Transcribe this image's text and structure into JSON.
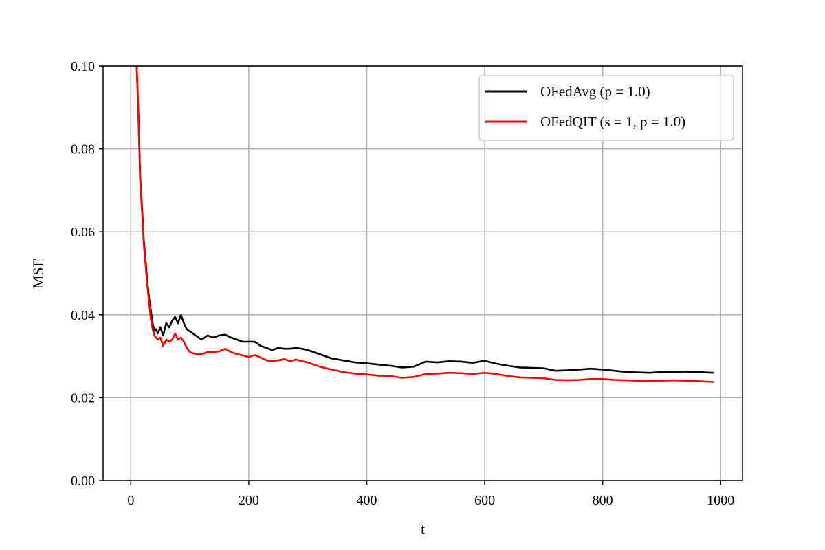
{
  "chart_data": {
    "type": "line",
    "title": "",
    "xlabel": "t",
    "ylabel": "MSE",
    "xlim": [
      -47,
      1037
    ],
    "ylim": [
      0.0,
      0.1
    ],
    "xticks": [
      0,
      200,
      400,
      600,
      800,
      1000
    ],
    "xtick_labels": [
      "0",
      "200",
      "400",
      "600",
      "800",
      "1000"
    ],
    "yticks": [
      0.0,
      0.02,
      0.04,
      0.06,
      0.08,
      0.1
    ],
    "ytick_labels": [
      "0.00",
      "0.02",
      "0.04",
      "0.06",
      "0.08",
      "0.10"
    ],
    "grid": true,
    "legend_position": "top-right",
    "series": [
      {
        "name": "OFedAvg (p = 1.0)",
        "color": "#000000",
        "x": [
          10,
          13,
          16,
          19,
          22,
          25,
          28,
          31,
          34,
          37,
          40,
          43,
          46,
          50,
          55,
          60,
          65,
          70,
          75,
          80,
          85,
          90,
          95,
          100,
          110,
          120,
          130,
          140,
          150,
          160,
          170,
          180,
          190,
          200,
          210,
          220,
          230,
          240,
          250,
          260,
          270,
          280,
          290,
          300,
          320,
          340,
          360,
          380,
          400,
          420,
          440,
          460,
          480,
          500,
          520,
          540,
          560,
          580,
          600,
          620,
          640,
          660,
          680,
          700,
          720,
          740,
          760,
          780,
          800,
          820,
          840,
          860,
          880,
          900,
          920,
          940,
          960,
          987
        ],
        "y": [
          0.1,
          0.088,
          0.073,
          0.066,
          0.058,
          0.053,
          0.048,
          0.044,
          0.041,
          0.038,
          0.036,
          0.0365,
          0.0355,
          0.037,
          0.035,
          0.038,
          0.037,
          0.0385,
          0.0395,
          0.038,
          0.04,
          0.038,
          0.0365,
          0.036,
          0.035,
          0.034,
          0.035,
          0.0345,
          0.035,
          0.0352,
          0.0345,
          0.034,
          0.0335,
          0.0335,
          0.0335,
          0.0325,
          0.032,
          0.0315,
          0.032,
          0.0318,
          0.0318,
          0.032,
          0.0318,
          0.0315,
          0.0305,
          0.0295,
          0.029,
          0.0285,
          0.0283,
          0.028,
          0.0277,
          0.0273,
          0.0275,
          0.0287,
          0.0285,
          0.0288,
          0.0287,
          0.0284,
          0.0289,
          0.0282,
          0.0277,
          0.0273,
          0.0272,
          0.0271,
          0.0265,
          0.0266,
          0.0268,
          0.027,
          0.0268,
          0.0265,
          0.0262,
          0.0261,
          0.026,
          0.0262,
          0.0262,
          0.0263,
          0.0262,
          0.026
        ]
      },
      {
        "name": "OFedQIT (s = 1, p = 1.0)",
        "color": "#ff0000",
        "x": [
          10,
          13,
          16,
          19,
          22,
          25,
          28,
          31,
          34,
          37,
          40,
          43,
          46,
          50,
          55,
          60,
          65,
          70,
          75,
          80,
          85,
          90,
          95,
          100,
          110,
          120,
          130,
          140,
          150,
          160,
          170,
          180,
          190,
          200,
          210,
          220,
          230,
          240,
          250,
          260,
          270,
          280,
          290,
          300,
          320,
          340,
          360,
          380,
          400,
          420,
          440,
          460,
          480,
          500,
          520,
          540,
          560,
          580,
          600,
          620,
          640,
          660,
          680,
          700,
          720,
          740,
          760,
          780,
          800,
          820,
          840,
          860,
          880,
          900,
          920,
          940,
          960,
          987
        ],
        "y": [
          0.1,
          0.087,
          0.072,
          0.065,
          0.057,
          0.052,
          0.047,
          0.043,
          0.039,
          0.0365,
          0.035,
          0.0345,
          0.034,
          0.0345,
          0.0325,
          0.034,
          0.0335,
          0.034,
          0.0355,
          0.034,
          0.0345,
          0.0335,
          0.032,
          0.031,
          0.0305,
          0.0305,
          0.031,
          0.031,
          0.0312,
          0.0318,
          0.031,
          0.0305,
          0.0302,
          0.0298,
          0.0303,
          0.0297,
          0.029,
          0.0288,
          0.029,
          0.0293,
          0.0288,
          0.0292,
          0.0288,
          0.0285,
          0.0275,
          0.0268,
          0.0262,
          0.0258,
          0.0256,
          0.0253,
          0.0252,
          0.0248,
          0.025,
          0.0257,
          0.0258,
          0.026,
          0.0259,
          0.0257,
          0.026,
          0.0257,
          0.0252,
          0.0249,
          0.0248,
          0.0247,
          0.0243,
          0.0242,
          0.0243,
          0.0245,
          0.0245,
          0.0243,
          0.0242,
          0.0241,
          0.024,
          0.0241,
          0.0242,
          0.0241,
          0.024,
          0.0238
        ]
      }
    ]
  }
}
